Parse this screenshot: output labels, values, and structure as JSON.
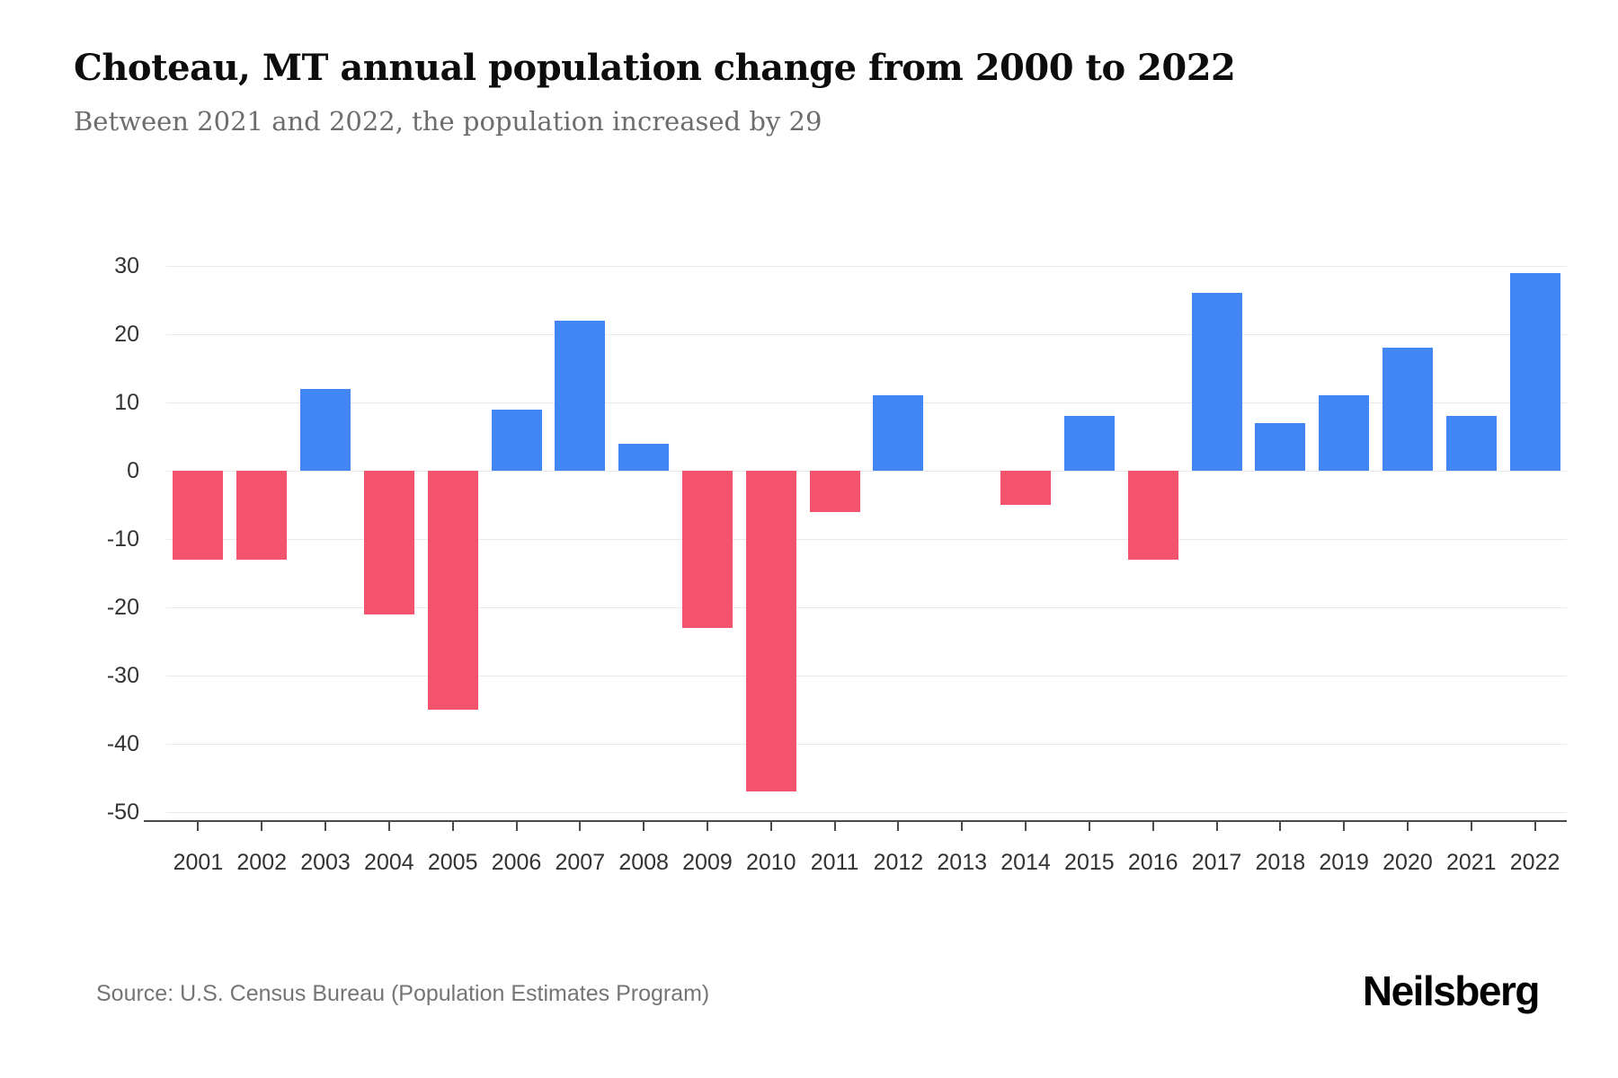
{
  "header": {
    "title": "Choteau, MT annual population change from 2000 to 2022",
    "subtitle": "Between 2021 and 2022, the population increased by 29"
  },
  "footer": {
    "source": "Source: U.S. Census Bureau (Population Estimates Program)",
    "brand": "Neilsberg"
  },
  "chart_data": {
    "type": "bar",
    "title": "Choteau, MT annual population change from 2000 to 2022",
    "subtitle": "Between 2021 and 2022, the population increased by 29",
    "categories": [
      "2001",
      "2002",
      "2003",
      "2004",
      "2005",
      "2006",
      "2007",
      "2008",
      "2009",
      "2010",
      "2011",
      "2012",
      "2013",
      "2014",
      "2015",
      "2016",
      "2017",
      "2018",
      "2019",
      "2020",
      "2021",
      "2022"
    ],
    "values": [
      -13,
      -13,
      12,
      -21,
      -35,
      9,
      22,
      4,
      -23,
      -47,
      -6,
      11,
      0,
      -5,
      8,
      -13,
      26,
      7,
      11,
      18,
      8,
      29
    ],
    "xlabel": "",
    "ylabel": "",
    "ylim": [
      -50,
      30
    ],
    "yticks": [
      30,
      20,
      10,
      0,
      -10,
      -20,
      -30,
      -40,
      -50
    ],
    "grid": "horizontal",
    "legend": "none",
    "colors": {
      "positive": "#4285f4",
      "negative": "#f4536e",
      "gridline": "#e9e9e9",
      "axis": "#4a4a4a",
      "tick_label": "#333333"
    }
  }
}
